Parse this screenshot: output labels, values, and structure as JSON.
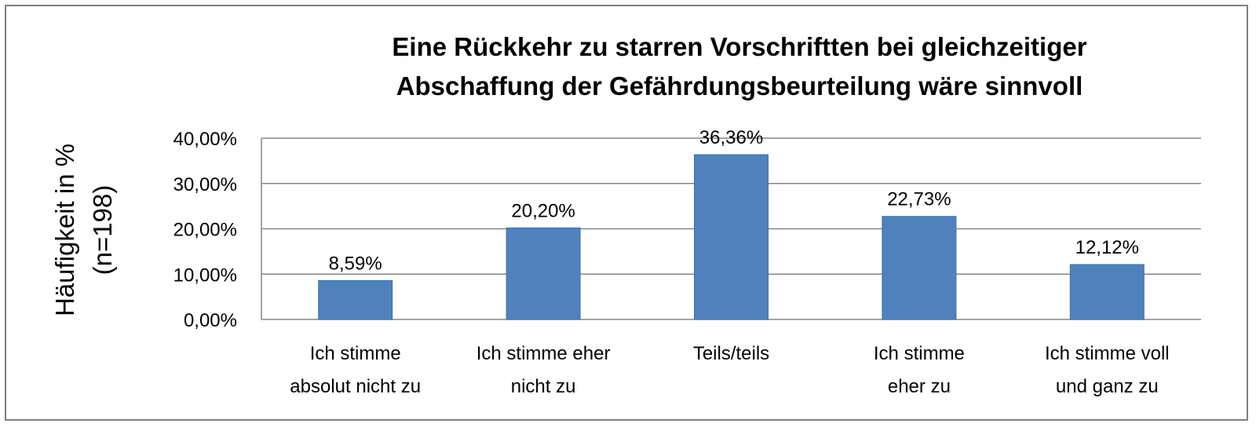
{
  "chart_data": {
    "type": "bar",
    "title": [
      "Eine Rückkehr zu starren Vorschriftten bei gleichzeitiger",
      "Abschaffung der Gefährdungsbeurteilung wäre sinnvoll"
    ],
    "ylabel": [
      "Häufigkeit in %",
      "(n=198)"
    ],
    "xlabel": "",
    "categories": [
      [
        "Ich stimme",
        "absolut nicht zu"
      ],
      [
        "Ich stimme eher",
        "nicht zu"
      ],
      [
        "Teils/teils"
      ],
      [
        "Ich stimme",
        "eher zu"
      ],
      [
        "Ich stimme voll",
        "und ganz zu"
      ]
    ],
    "values": [
      8.59,
      20.2,
      36.36,
      22.73,
      12.12
    ],
    "data_labels": [
      "8,59%",
      "20,20%",
      "36,36%",
      "22,73%",
      "12,12%"
    ],
    "ylim": [
      0,
      40
    ],
    "yticks": [
      0,
      10,
      20,
      30,
      40
    ],
    "ytick_labels": [
      "0,00%",
      "10,00%",
      "20,00%",
      "30,00%",
      "40,00%"
    ],
    "grid": true,
    "legend": "none",
    "colors": {
      "bar": "#4F81BD",
      "bar_stroke": "#3f6fa8",
      "grid": "#868686",
      "axis": "#868686",
      "border": "#7f7f7f"
    }
  }
}
